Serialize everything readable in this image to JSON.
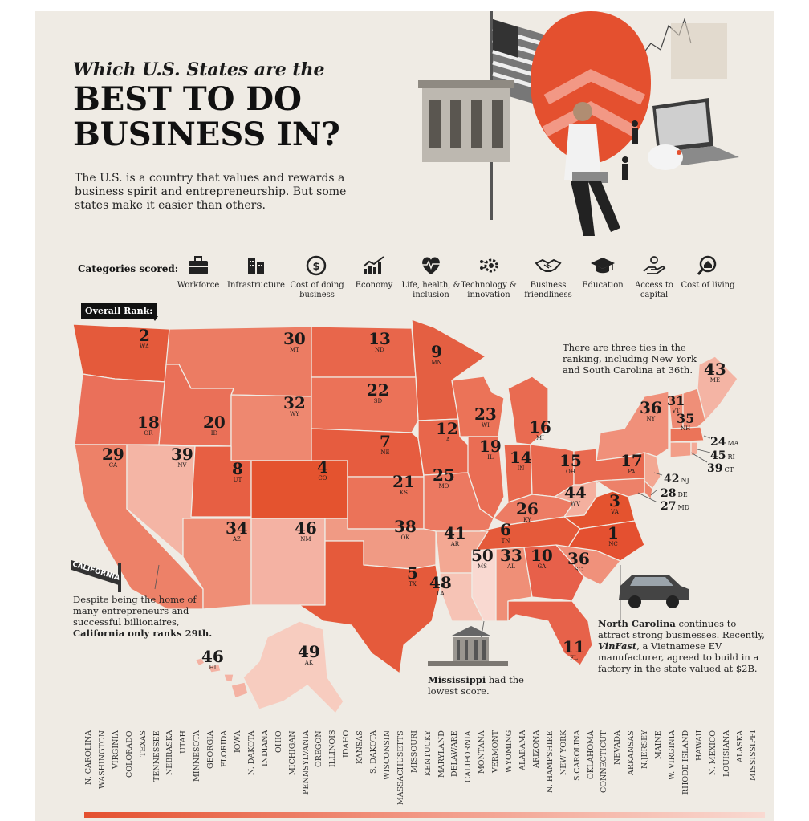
{
  "title": {
    "line1": "Which U.S. States are the",
    "line2": "BEST TO DO BUSINESS IN?"
  },
  "intro": "The U.S. is a country that values and rewards a business spirit and entrepreneurship. But some states make it easier than others.",
  "categories_label": "Categories scored:",
  "categories": [
    {
      "label": "Workforce",
      "icon": "briefcase-icon"
    },
    {
      "label": "Infrastructure",
      "icon": "building-icon"
    },
    {
      "label": "Cost of doing business",
      "icon": "dollar-icon"
    },
    {
      "label": "Economy",
      "icon": "growth-chart-icon"
    },
    {
      "label": "Life, health, & inclusion",
      "icon": "heartbeat-icon"
    },
    {
      "label": "Technology & innovation",
      "icon": "gears-icon"
    },
    {
      "label": "Business friendliness",
      "icon": "handshake-icon"
    },
    {
      "label": "Education",
      "icon": "graduation-cap-icon"
    },
    {
      "label": "Access to capital",
      "icon": "hand-coin-icon"
    },
    {
      "label": "Cost of living",
      "icon": "magnifier-house-icon"
    }
  ],
  "overall_rank_label": "Overall Rank:",
  "states": [
    {
      "abbr": "WA",
      "rank": "2"
    },
    {
      "abbr": "MT",
      "rank": "30"
    },
    {
      "abbr": "ND",
      "rank": "13"
    },
    {
      "abbr": "MN",
      "rank": "9"
    },
    {
      "abbr": "ME",
      "rank": "43"
    },
    {
      "abbr": "OR",
      "rank": "18"
    },
    {
      "abbr": "ID",
      "rank": "20"
    },
    {
      "abbr": "WY",
      "rank": "32"
    },
    {
      "abbr": "SD",
      "rank": "22"
    },
    {
      "abbr": "WI",
      "rank": "23"
    },
    {
      "abbr": "MI",
      "rank": "16"
    },
    {
      "abbr": "NY",
      "rank": "36"
    },
    {
      "abbr": "VT",
      "rank": "31"
    },
    {
      "abbr": "NH",
      "rank": "35"
    },
    {
      "abbr": "CA",
      "rank": "29"
    },
    {
      "abbr": "NV",
      "rank": "39"
    },
    {
      "abbr": "UT",
      "rank": "8"
    },
    {
      "abbr": "CO",
      "rank": "4"
    },
    {
      "abbr": "NE",
      "rank": "7"
    },
    {
      "abbr": "IA",
      "rank": "12"
    },
    {
      "abbr": "IL",
      "rank": "19"
    },
    {
      "abbr": "IN",
      "rank": "14"
    },
    {
      "abbr": "OH",
      "rank": "15"
    },
    {
      "abbr": "PA",
      "rank": "17"
    },
    {
      "abbr": "KS",
      "rank": "21"
    },
    {
      "abbr": "MO",
      "rank": "25"
    },
    {
      "abbr": "KY",
      "rank": "26"
    },
    {
      "abbr": "WV",
      "rank": "44"
    },
    {
      "abbr": "VA",
      "rank": "3"
    },
    {
      "abbr": "AZ",
      "rank": "34"
    },
    {
      "abbr": "NM",
      "rank": "46"
    },
    {
      "abbr": "OK",
      "rank": "38"
    },
    {
      "abbr": "AR",
      "rank": "41"
    },
    {
      "abbr": "TN",
      "rank": "6"
    },
    {
      "abbr": "NC",
      "rank": "1"
    },
    {
      "abbr": "TX",
      "rank": "5"
    },
    {
      "abbr": "LA",
      "rank": "48"
    },
    {
      "abbr": "MS",
      "rank": "50"
    },
    {
      "abbr": "AL",
      "rank": "33"
    },
    {
      "abbr": "GA",
      "rank": "10"
    },
    {
      "abbr": "SC",
      "rank": "36"
    },
    {
      "abbr": "FL",
      "rank": "11"
    },
    {
      "abbr": "HI",
      "rank": "46"
    },
    {
      "abbr": "AK",
      "rank": "49"
    },
    {
      "abbr": "MA",
      "rank": "24"
    },
    {
      "abbr": "RI",
      "rank": "45"
    },
    {
      "abbr": "CT",
      "rank": "39"
    },
    {
      "abbr": "NJ",
      "rank": "42"
    },
    {
      "abbr": "DE",
      "rank": "28"
    },
    {
      "abbr": "MD",
      "rank": "27"
    }
  ],
  "notes": {
    "ties": "There are three ties in the ranking, including New York and South Carolina at 36th.",
    "california_pre": "Despite being the home of many entrepreneurs and successful billionaires, ",
    "california_bold": "California only ranks 29th.",
    "mississippi_bold": "Mississippi",
    "mississippi_rest": " had the lowest score.",
    "nc_bold": "North Carolina",
    "nc_pre": " continues to attract strong businesses. Recently, ",
    "nc_italic": "VinFast",
    "nc_post": ", a Vietnamese EV manufacturer, agreed to build in a factory in the state valued at $2B.",
    "street_sign": "CALIFORNIA"
  },
  "ranking_order": [
    "N. CAROLINA",
    "WASHINGTON",
    "VIRGINIA",
    "COLORADO",
    "TEXAS",
    "TENNESSEE",
    "NEBRASKA",
    "UTAH",
    "MINNESOTA",
    "GEORGIA",
    "FLORIDA",
    "IOWA",
    "N. DAKOTA",
    "INDIANA",
    "OHIO",
    "MICHIGAN",
    "PENNSYLVANIA",
    "OREGON",
    "ILLINOIS",
    "IDAHO",
    "KANSAS",
    "S. DAKOTA",
    "WISCONSIN",
    "MASSACHUSETTS",
    "MISSOURI",
    "KENTUCKY",
    "MARYLAND",
    "DELAWARE",
    "CALIFORNIA",
    "MONTANA",
    "VERMONT",
    "WYOMING",
    "ALABAMA",
    "ARIZONA",
    "N. HAMPSHIRE",
    "NEW YORK",
    "S.CAROLINA",
    "OKLAHOMA",
    "CONNECTICUT",
    "NEVADA",
    "ARKANSAS",
    "N.JERSEY",
    "MAINE",
    "W. VIRGINIA",
    "RHODE ISLAND",
    "HAWAII",
    "N. MEXICO",
    "LOUISIANA",
    "ALASKA",
    "MISSISSIPPI"
  ],
  "colors": {
    "top": "#e4502f",
    "bottom": "#f9d9d1",
    "background": "#efebe4"
  }
}
